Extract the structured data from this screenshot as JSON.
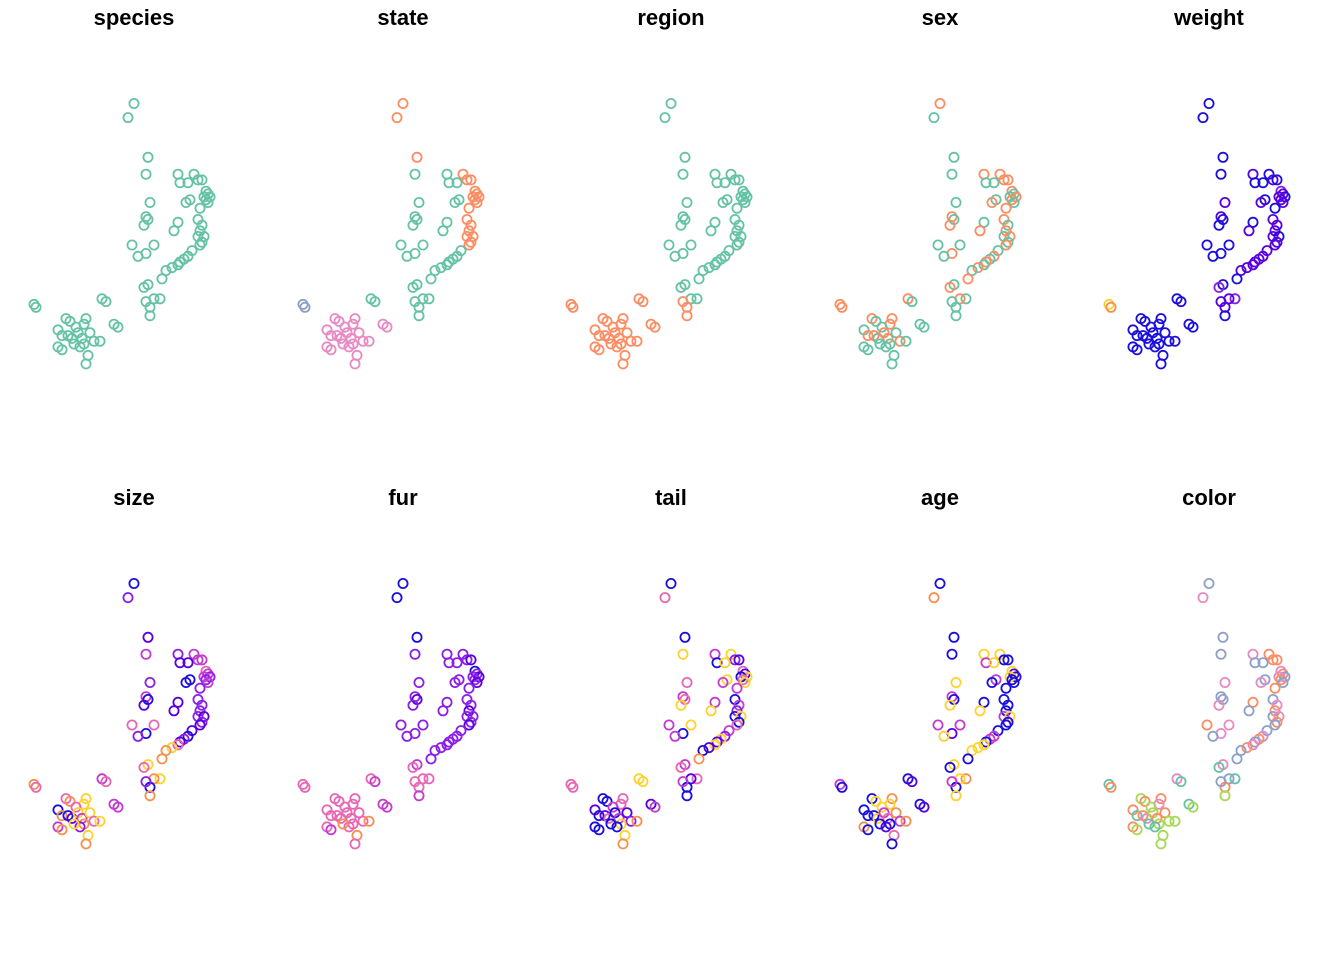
{
  "chart_data": {
    "type": "scatter",
    "layout": "small-multiples 2x5",
    "axes": "none",
    "grid": false,
    "legend": "none",
    "palettes": {
      "set2": [
        "#66c2a5",
        "#fc8d62",
        "#8da0cb",
        "#e78ac3",
        "#a6d854"
      ],
      "gradient": [
        "#1a0fdc",
        "#5a00e0",
        "#8b1fe8",
        "#c23ccf",
        "#e867b4",
        "#f6904f",
        "#ffd22e"
      ]
    },
    "points": [
      {
        "x": 0.5,
        "y": 0.97
      },
      {
        "x": 0.47,
        "y": 0.92
      },
      {
        "x": 0.57,
        "y": 0.78
      },
      {
        "x": 0.56,
        "y": 0.72
      },
      {
        "x": 0.72,
        "y": 0.72
      },
      {
        "x": 0.8,
        "y": 0.72
      },
      {
        "x": 0.73,
        "y": 0.69
      },
      {
        "x": 0.82,
        "y": 0.7
      },
      {
        "x": 0.77,
        "y": 0.69
      },
      {
        "x": 0.84,
        "y": 0.7
      },
      {
        "x": 0.86,
        "y": 0.66
      },
      {
        "x": 0.87,
        "y": 0.65
      },
      {
        "x": 0.88,
        "y": 0.64
      },
      {
        "x": 0.85,
        "y": 0.64
      },
      {
        "x": 0.86,
        "y": 0.63
      },
      {
        "x": 0.87,
        "y": 0.62
      },
      {
        "x": 0.78,
        "y": 0.63
      },
      {
        "x": 0.76,
        "y": 0.62
      },
      {
        "x": 0.83,
        "y": 0.6
      },
      {
        "x": 0.58,
        "y": 0.62
      },
      {
        "x": 0.56,
        "y": 0.57
      },
      {
        "x": 0.57,
        "y": 0.56
      },
      {
        "x": 0.55,
        "y": 0.54
      },
      {
        "x": 0.72,
        "y": 0.55
      },
      {
        "x": 0.82,
        "y": 0.56
      },
      {
        "x": 0.84,
        "y": 0.54
      },
      {
        "x": 0.83,
        "y": 0.52
      },
      {
        "x": 0.82,
        "y": 0.5
      },
      {
        "x": 0.85,
        "y": 0.5
      },
      {
        "x": 0.84,
        "y": 0.48
      },
      {
        "x": 0.83,
        "y": 0.47
      },
      {
        "x": 0.7,
        "y": 0.52
      },
      {
        "x": 0.6,
        "y": 0.47
      },
      {
        "x": 0.49,
        "y": 0.47
      },
      {
        "x": 0.56,
        "y": 0.44
      },
      {
        "x": 0.52,
        "y": 0.43
      },
      {
        "x": 0.79,
        "y": 0.45
      },
      {
        "x": 0.77,
        "y": 0.43
      },
      {
        "x": 0.75,
        "y": 0.42
      },
      {
        "x": 0.73,
        "y": 0.41
      },
      {
        "x": 0.72,
        "y": 0.4
      },
      {
        "x": 0.69,
        "y": 0.39
      },
      {
        "x": 0.66,
        "y": 0.38
      },
      {
        "x": 0.64,
        "y": 0.35
      },
      {
        "x": 0.57,
        "y": 0.33
      },
      {
        "x": 0.55,
        "y": 0.32
      },
      {
        "x": 0.63,
        "y": 0.28
      },
      {
        "x": 0.6,
        "y": 0.28
      },
      {
        "x": 0.58,
        "y": 0.25
      },
      {
        "x": 0.56,
        "y": 0.27
      },
      {
        "x": 0.34,
        "y": 0.28
      },
      {
        "x": 0.36,
        "y": 0.27
      },
      {
        "x": 0.58,
        "y": 0.22
      },
      {
        "x": 0.0,
        "y": 0.26
      },
      {
        "x": 0.01,
        "y": 0.25
      },
      {
        "x": 0.4,
        "y": 0.19
      },
      {
        "x": 0.42,
        "y": 0.18
      },
      {
        "x": 0.16,
        "y": 0.21
      },
      {
        "x": 0.18,
        "y": 0.2
      },
      {
        "x": 0.26,
        "y": 0.21
      },
      {
        "x": 0.25,
        "y": 0.19
      },
      {
        "x": 0.21,
        "y": 0.18
      },
      {
        "x": 0.12,
        "y": 0.17
      },
      {
        "x": 0.14,
        "y": 0.15
      },
      {
        "x": 0.17,
        "y": 0.15
      },
      {
        "x": 0.19,
        "y": 0.14
      },
      {
        "x": 0.22,
        "y": 0.16
      },
      {
        "x": 0.24,
        "y": 0.14
      },
      {
        "x": 0.28,
        "y": 0.16
      },
      {
        "x": 0.3,
        "y": 0.13
      },
      {
        "x": 0.25,
        "y": 0.12
      },
      {
        "x": 0.23,
        "y": 0.11
      },
      {
        "x": 0.12,
        "y": 0.11
      },
      {
        "x": 0.14,
        "y": 0.1
      },
      {
        "x": 0.27,
        "y": 0.08
      },
      {
        "x": 0.26,
        "y": 0.05
      },
      {
        "x": 0.33,
        "y": 0.13
      },
      {
        "x": 0.2,
        "y": 0.12
      }
    ],
    "panels": [
      {
        "title": "species",
        "palette": "set2",
        "groups": [
          0,
          0,
          0,
          0,
          0,
          0,
          0,
          0,
          0,
          0,
          0,
          0,
          0,
          0,
          0,
          0,
          0,
          0,
          0,
          0,
          0,
          0,
          0,
          0,
          0,
          0,
          0,
          0,
          0,
          0,
          0,
          0,
          0,
          0,
          0,
          0,
          0,
          0,
          0,
          0,
          0,
          0,
          0,
          0,
          0,
          0,
          0,
          0,
          0,
          0,
          0,
          0,
          0,
          0,
          0,
          0,
          0,
          0,
          0,
          0,
          0,
          0,
          0,
          0,
          0,
          0,
          0,
          0,
          0,
          0,
          0,
          0,
          0,
          0,
          0,
          0,
          0,
          0
        ]
      },
      {
        "title": "state",
        "palette": "set2",
        "groups": [
          1,
          1,
          1,
          0,
          0,
          1,
          0,
          1,
          0,
          1,
          1,
          1,
          1,
          1,
          1,
          1,
          0,
          0,
          1,
          0,
          0,
          0,
          0,
          0,
          1,
          1,
          1,
          1,
          1,
          1,
          1,
          0,
          0,
          0,
          0,
          0,
          0,
          0,
          0,
          0,
          0,
          0,
          0,
          0,
          0,
          0,
          0,
          0,
          0,
          0,
          0,
          0,
          0,
          2,
          2,
          3,
          3,
          3,
          3,
          3,
          3,
          3,
          3,
          3,
          3,
          3,
          3,
          3,
          3,
          3,
          3,
          3,
          3,
          3,
          3,
          3,
          3,
          3
        ]
      },
      {
        "title": "region",
        "palette": "set2",
        "groups": [
          0,
          0,
          0,
          0,
          0,
          0,
          0,
          0,
          0,
          0,
          0,
          0,
          0,
          0,
          0,
          0,
          0,
          0,
          0,
          0,
          0,
          0,
          0,
          0,
          0,
          0,
          0,
          0,
          0,
          0,
          0,
          0,
          0,
          0,
          0,
          0,
          0,
          0,
          0,
          0,
          0,
          0,
          0,
          0,
          0,
          0,
          0,
          0,
          1,
          1,
          1,
          1,
          1,
          1,
          1,
          1,
          1,
          1,
          1,
          1,
          1,
          1,
          1,
          1,
          1,
          1,
          1,
          1,
          1,
          1,
          1,
          1,
          1,
          1,
          1,
          1,
          1,
          1
        ]
      },
      {
        "title": "sex",
        "palette": "set2",
        "groups": [
          1,
          0,
          0,
          0,
          1,
          1,
          0,
          1,
          0,
          1,
          1,
          0,
          1,
          0,
          1,
          0,
          0,
          1,
          1,
          0,
          1,
          0,
          1,
          0,
          1,
          0,
          1,
          0,
          1,
          0,
          1,
          1,
          0,
          0,
          1,
          0,
          0,
          1,
          0,
          1,
          0,
          1,
          0,
          1,
          0,
          1,
          0,
          1,
          0,
          0,
          1,
          0,
          0,
          1,
          1,
          0,
          0,
          1,
          0,
          1,
          1,
          0,
          0,
          1,
          1,
          0,
          1,
          1,
          0,
          1,
          0,
          0,
          0,
          0,
          0,
          0,
          0,
          0
        ]
      },
      {
        "title": "weight",
        "palette": "gradient",
        "groups": [
          0,
          0,
          0,
          0,
          1,
          0,
          0,
          1,
          0,
          0,
          2,
          1,
          0,
          1,
          1,
          1,
          0,
          1,
          0,
          1,
          1,
          0,
          0,
          0,
          1,
          1,
          1,
          1,
          0,
          1,
          1,
          1,
          0,
          0,
          0,
          0,
          1,
          1,
          1,
          1,
          1,
          1,
          1,
          0,
          0,
          2,
          2,
          1,
          1,
          1,
          0,
          0,
          0,
          6,
          5,
          0,
          0,
          0,
          0,
          0,
          0,
          0,
          0,
          0,
          0,
          0,
          0,
          0,
          0,
          0,
          0,
          0,
          0,
          0,
          0,
          0,
          0,
          0
        ]
      },
      {
        "title": "size",
        "palette": "gradient",
        "groups": [
          0,
          2,
          1,
          3,
          2,
          3,
          1,
          3,
          1,
          3,
          4,
          3,
          2,
          3,
          2,
          3,
          0,
          0,
          2,
          2,
          3,
          0,
          1,
          1,
          2,
          2,
          2,
          2,
          1,
          2,
          1,
          1,
          4,
          4,
          0,
          2,
          1,
          0,
          2,
          1,
          4,
          6,
          5,
          5,
          6,
          4,
          6,
          5,
          0,
          2,
          3,
          4,
          5,
          5,
          4,
          3,
          3,
          4,
          5,
          6,
          6,
          4,
          0,
          5,
          0,
          1,
          6,
          3,
          6,
          4,
          5,
          2,
          3,
          5,
          6,
          5,
          6,
          6
        ]
      },
      {
        "title": "fur",
        "palette": "gradient",
        "groups": [
          0,
          0,
          0,
          2,
          2,
          2,
          2,
          2,
          2,
          1,
          0,
          2,
          1,
          2,
          2,
          1,
          2,
          2,
          2,
          2,
          2,
          1,
          2,
          2,
          2,
          2,
          1,
          2,
          2,
          2,
          1,
          2,
          2,
          2,
          2,
          2,
          2,
          2,
          2,
          2,
          2,
          2,
          2,
          2,
          3,
          4,
          4,
          4,
          4,
          4,
          4,
          3,
          3,
          4,
          4,
          3,
          3,
          4,
          4,
          4,
          4,
          4,
          4,
          4,
          4,
          4,
          4,
          4,
          4,
          4,
          4,
          4,
          4,
          3,
          5,
          4,
          5,
          5
        ]
      },
      {
        "title": "tail",
        "palette": "gradient",
        "groups": [
          0,
          4,
          0,
          6,
          3,
          6,
          0,
          2,
          6,
          1,
          4,
          1,
          6,
          0,
          4,
          6,
          6,
          3,
          3,
          4,
          3,
          4,
          6,
          3,
          0,
          3,
          2,
          0,
          6,
          0,
          4,
          6,
          6,
          3,
          0,
          3,
          3,
          2,
          6,
          1,
          6,
          1,
          0,
          5,
          3,
          4,
          4,
          1,
          0,
          3,
          6,
          6,
          0,
          4,
          4,
          1,
          3,
          0,
          0,
          4,
          4,
          3,
          1,
          0,
          1,
          4,
          0,
          3,
          1,
          2,
          6,
          0,
          0,
          0,
          6,
          5,
          5,
          0
        ]
      },
      {
        "title": "age",
        "palette": "gradient",
        "groups": [
          0,
          5,
          0,
          0,
          6,
          6,
          3,
          0,
          6,
          0,
          6,
          1,
          0,
          6,
          0,
          0,
          3,
          0,
          0,
          6,
          3,
          0,
          6,
          0,
          0,
          0,
          0,
          3,
          6,
          0,
          0,
          6,
          3,
          3,
          1,
          6,
          0,
          3,
          3,
          0,
          6,
          6,
          6,
          0,
          6,
          0,
          5,
          6,
          0,
          3,
          0,
          1,
          6,
          3,
          0,
          0,
          1,
          0,
          6,
          5,
          6,
          6,
          0,
          0,
          0,
          6,
          3,
          4,
          5,
          3,
          0,
          1,
          5,
          0,
          4,
          0,
          5,
          0
        ]
      },
      {
        "title": "color",
        "palette": "set2",
        "groups": [
          2,
          3,
          2,
          2,
          3,
          1,
          2,
          1,
          2,
          1,
          3,
          1,
          2,
          3,
          1,
          2,
          2,
          3,
          1,
          3,
          2,
          2,
          3,
          1,
          2,
          3,
          1,
          2,
          3,
          1,
          2,
          2,
          3,
          1,
          3,
          2,
          2,
          3,
          1,
          2,
          3,
          1,
          2,
          2,
          3,
          0,
          0,
          2,
          1,
          2,
          3,
          0,
          4,
          0,
          1,
          0,
          4,
          4,
          1,
          1,
          3,
          4,
          1,
          0,
          1,
          3,
          4,
          1,
          1,
          4,
          4,
          0,
          1,
          4,
          4,
          4,
          4,
          0
        ]
      }
    ]
  }
}
